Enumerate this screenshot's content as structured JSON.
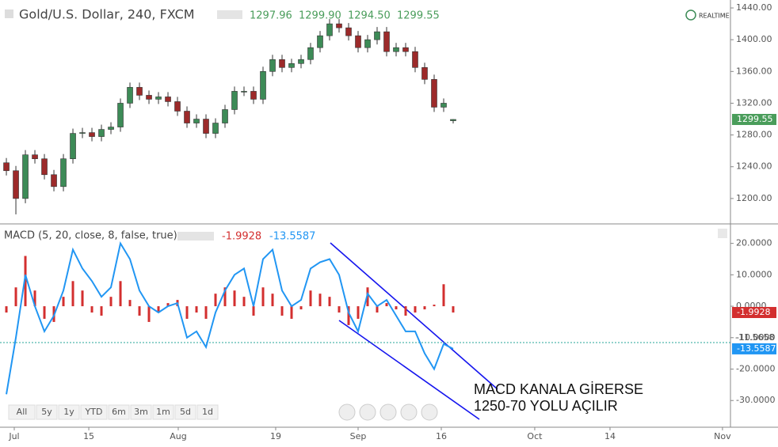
{
  "toolbar": {
    "ranges": [
      "All",
      "5y",
      "1y",
      "YTD",
      "6m",
      "3m",
      "1m",
      "5d",
      "1d"
    ]
  },
  "chart_data": [
    {
      "type": "candlestick",
      "title": "Gold/U.S. Dollar, 240, FXCM",
      "ohlc_labels": [
        "1297.96",
        "1299.90",
        "1294.50",
        "1299.55"
      ],
      "realtime": "REALTIME",
      "x": [
        0,
        1,
        2,
        3,
        4,
        5,
        6,
        7,
        8,
        9,
        10,
        11,
        12,
        13,
        14,
        15,
        16,
        17,
        18,
        19,
        20,
        21,
        22,
        23,
        24,
        25,
        26,
        27,
        28,
        29,
        30,
        31,
        32,
        33,
        34,
        35,
        36,
        37,
        38,
        39,
        40,
        41,
        42,
        43,
        44,
        45,
        46,
        47
      ],
      "open": [
        1245,
        1235,
        1200,
        1255,
        1250,
        1230,
        1215,
        1250,
        1282,
        1283,
        1278,
        1287,
        1290,
        1320,
        1340,
        1330,
        1325,
        1328,
        1322,
        1310,
        1295,
        1300,
        1282,
        1295,
        1312,
        1335,
        1335,
        1325,
        1360,
        1375,
        1365,
        1370,
        1375,
        1390,
        1405,
        1420,
        1415,
        1405,
        1390,
        1400,
        1410,
        1385,
        1390,
        1385,
        1365,
        1350,
        1315,
        1297.96
      ],
      "high": [
        1251,
        1241,
        1261,
        1261,
        1256,
        1236,
        1256,
        1288,
        1289,
        1289,
        1293,
        1296,
        1326,
        1346,
        1346,
        1336,
        1334,
        1334,
        1328,
        1316,
        1306,
        1306,
        1301,
        1318,
        1341,
        1341,
        1341,
        1366,
        1381,
        1381,
        1376,
        1381,
        1396,
        1411,
        1426,
        1426,
        1421,
        1411,
        1406,
        1416,
        1416,
        1396,
        1396,
        1391,
        1371,
        1356,
        1326,
        1299.9
      ],
      "low": [
        1229,
        1180,
        1194,
        1244,
        1224,
        1209,
        1209,
        1244,
        1276,
        1272,
        1272,
        1281,
        1284,
        1314,
        1324,
        1319,
        1319,
        1316,
        1304,
        1289,
        1289,
        1276,
        1276,
        1289,
        1306,
        1329,
        1319,
        1319,
        1354,
        1359,
        1359,
        1364,
        1369,
        1384,
        1399,
        1409,
        1399,
        1384,
        1384,
        1394,
        1379,
        1379,
        1379,
        1359,
        1344,
        1309,
        1309,
        1294.5
      ],
      "close": [
        1235,
        1200,
        1255,
        1250,
        1230,
        1215,
        1250,
        1282,
        1283,
        1278,
        1287,
        1290,
        1320,
        1340,
        1330,
        1325,
        1328,
        1322,
        1310,
        1295,
        1300,
        1282,
        1295,
        1312,
        1335,
        1335,
        1325,
        1360,
        1375,
        1365,
        1370,
        1375,
        1390,
        1405,
        1420,
        1415,
        1405,
        1390,
        1400,
        1410,
        1385,
        1390,
        1385,
        1365,
        1350,
        1315,
        1320,
        1299.55
      ],
      "up_color": "#3d8b57",
      "down_color": "#9c2a2a",
      "badge_color": "#4a9d5b",
      "xlim": [
        -0.67,
        76.17
      ],
      "xticks": [
        {
          "value": 0.83,
          "label": "Jul"
        },
        {
          "value": 8.67,
          "label": "15"
        },
        {
          "value": 18.08,
          "label": "Aug"
        },
        {
          "value": 28.33,
          "label": "19"
        },
        {
          "value": 37,
          "label": "Sep"
        },
        {
          "value": 45.75,
          "label": "16"
        },
        {
          "value": 55.58,
          "label": "Oct"
        },
        {
          "value": 63.5,
          "label": "14"
        },
        {
          "value": 75.33,
          "label": "Nov"
        }
      ],
      "ylim": [
        1168,
        1450
      ],
      "yticks": [
        {
          "value": 1200,
          "label": "1200.00"
        },
        {
          "value": 1240,
          "label": "1240.00"
        },
        {
          "value": 1280,
          "label": "1280.00"
        },
        {
          "value": 1320,
          "label": "1320.00"
        },
        {
          "value": 1360,
          "label": "1360.00"
        },
        {
          "value": 1400,
          "label": "1400.00"
        },
        {
          "value": 1440,
          "label": "1440.00"
        }
      ]
    },
    {
      "type": "macd",
      "title": "MACD (5, 20, close, 8, false, true)",
      "histogram": {
        "color": "#d32f2f",
        "values": [
          -2,
          6,
          16,
          5,
          -4,
          -5,
          3,
          8,
          5,
          -2,
          -3,
          3,
          8,
          2,
          -3,
          -5,
          -2,
          1,
          2,
          -4,
          -2,
          -4,
          4,
          6,
          5,
          3,
          -3,
          6,
          4,
          -3,
          -4,
          -1,
          5,
          4,
          3,
          -2,
          -6,
          -4,
          6,
          -2,
          1,
          -1,
          -3,
          -2,
          -1,
          0.5,
          7,
          -1.9928
        ]
      },
      "macd": {
        "color": "#2196f3",
        "values": [
          -28,
          -10,
          10,
          0,
          -8,
          -3,
          5,
          18,
          12,
          8,
          3,
          6,
          20,
          15,
          5,
          0,
          -2,
          0,
          1,
          -10,
          -8,
          -13,
          -2,
          5,
          10,
          12,
          0,
          15,
          18,
          5,
          0,
          2,
          12,
          14,
          15,
          10,
          -2,
          -8,
          4,
          0,
          2,
          -3,
          -8,
          -8,
          -15,
          -20,
          -12,
          -13.5587
        ]
      },
      "level": -11.5658,
      "level_color": "#26a69a",
      "ylim": [
        -38.5,
        26.2
      ],
      "yticks": [
        {
          "value": 20,
          "label": "20.0000"
        },
        {
          "value": 10,
          "label": "10.0000"
        },
        {
          "value": 0,
          "label": "0.0000"
        },
        {
          "value": -10,
          "label": "-10.0000"
        },
        {
          "value": -20,
          "label": "-20.0000"
        },
        {
          "value": -30,
          "label": "-30.0000"
        }
      ],
      "annotation": [
        "MACD KANALA GİRERSE",
        "1250-70 YOLU AÇILIR"
      ]
    }
  ]
}
